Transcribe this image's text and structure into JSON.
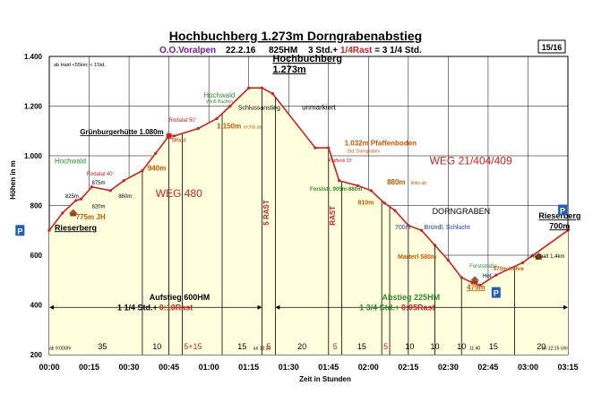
{
  "header": {
    "title": "Hochbuchberg 1.273m Dorngrabenabstieg",
    "org": "O.O.Voralpen",
    "date": "22.2.16",
    "elevation_gain": "825HM",
    "time_main": "3 Std.+ ",
    "time_rest": "1/4Rast",
    "time_total": " = 3 1/4 Std.",
    "page": "15/16",
    "note": "ab Haid <55km; < 1Std."
  },
  "colors": {
    "profile": "#cc2222",
    "fill": "#ffffdd",
    "green": "#2e8b2e",
    "orange": "#cc5500",
    "blue": "#1a3aa8",
    "purple": "#7a1a9a",
    "grid": "#000000"
  },
  "chart_data": {
    "type": "area",
    "ylabel": "Höhen in m",
    "xlabel": "Zeit in Stunden",
    "ylim": [
      200,
      1400
    ],
    "xlim_minutes": [
      0,
      195
    ],
    "yticks": [
      "200",
      "400",
      "600",
      "800",
      "1.000",
      "1.200",
      "1.400"
    ],
    "ytick_values": [
      200,
      400,
      600,
      800,
      1000,
      1200,
      1400
    ],
    "xticks": [
      "00:00",
      "00:15",
      "00:30",
      "00:45",
      "01:00",
      "01:15",
      "01:30",
      "01:45",
      "02:00",
      "02:15",
      "02:30",
      "02:45",
      "03:00",
      "03:15"
    ],
    "xtick_minutes": [
      0,
      15,
      30,
      45,
      60,
      75,
      90,
      105,
      120,
      135,
      150,
      165,
      180,
      195
    ],
    "profile": {
      "minutes": [
        0,
        5,
        10,
        12,
        16,
        23,
        28,
        35,
        40,
        45,
        47,
        56,
        63,
        68,
        75,
        80,
        84,
        100,
        105,
        109,
        116,
        121,
        126,
        130,
        135,
        140,
        145,
        150,
        155,
        159,
        162,
        168,
        178,
        195
      ],
      "elevations": [
        700,
        770,
        820,
        826,
        875,
        860,
        900,
        940,
        1010,
        1080,
        1080,
        1110,
        1150,
        1200,
        1273,
        1273,
        1250,
        1032,
        1032,
        900,
        880,
        860,
        810,
        780,
        720,
        700,
        640,
        580,
        510,
        490,
        479,
        520,
        570,
        700
      ]
    },
    "vlines_minutes": [
      35,
      45,
      50,
      65,
      80,
      85,
      105,
      110,
      125,
      128,
      135,
      145,
      155,
      175
    ],
    "segment_labels": [
      {
        "text": "35",
        "minute": 20
      },
      {
        "text": "10",
        "minute": 40.5
      },
      {
        "text": "5+15",
        "minute": 54
      },
      {
        "text": "15",
        "minute": 72.5
      },
      {
        "text": "5",
        "minute": 82.5
      },
      {
        "text": "20",
        "minute": 95
      },
      {
        "text": "5",
        "minute": 107.5
      },
      {
        "text": "15",
        "minute": 117.5
      },
      {
        "text": "5",
        "minute": 126.5
      },
      {
        "text": "10",
        "minute": 135.5
      },
      {
        "text": "10",
        "minute": 145
      },
      {
        "text": "10",
        "minute": 155
      },
      {
        "text": "15",
        "minute": 167
      },
      {
        "text": "20",
        "minute": 185
      }
    ],
    "annotations": [
      {
        "text": "Hochbuchberg",
        "minute": 84,
        "elev": 1378,
        "color": "#000000",
        "size": 11,
        "bold": true,
        "underline": true
      },
      {
        "text": "1.273m",
        "minute": 84,
        "elev": 1336,
        "color": "#000000",
        "size": 11,
        "bold": true,
        "underline": true
      },
      {
        "text": "Grünburgerhütte 1.080m",
        "minute": 43,
        "elev": 1086,
        "color": "#000000",
        "size": 8,
        "bold": true,
        "underline": true,
        "anchor": "end"
      },
      {
        "text": "Hochwald",
        "minute": 2,
        "elev": 970,
        "color": "#2e8b2e",
        "size": 8
      },
      {
        "text": "Hochwald",
        "minute": 58,
        "elev": 1235,
        "color": "#2e8b2e",
        "size": 8
      },
      {
        "text": "Weiß Buchen",
        "minute": 59,
        "elev": 1212,
        "color": "#2e8b2e",
        "size": 5
      },
      {
        "text": "Rodatal 50'",
        "minute": 45,
        "elev": 1137,
        "color": "#cc2222",
        "size": 6
      },
      {
        "text": "5Rast",
        "minute": 46,
        "elev": 1055,
        "color": "#cc2222",
        "size": 6
      },
      {
        "text": "Rodatal 40'",
        "minute": 14,
        "elev": 920,
        "color": "#cc2222",
        "size": 6
      },
      {
        "text": "940m",
        "minute": 37,
        "elev": 940,
        "color": "#cc5500",
        "size": 8,
        "bold": true
      },
      {
        "text": "825m",
        "minute": 6,
        "elev": 830,
        "color": "#000000",
        "size": 6
      },
      {
        "text": "875m",
        "minute": 16,
        "elev": 884,
        "color": "#000000",
        "size": 6
      },
      {
        "text": "820m",
        "minute": 16,
        "elev": 790,
        "color": "#000000",
        "size": 6
      },
      {
        "text": "860m",
        "minute": 26,
        "elev": 830,
        "color": "#000000",
        "size": 6
      },
      {
        "text": "775m JH",
        "minute": 10,
        "elev": 745,
        "color": "#cc5500",
        "size": 8,
        "bold": true
      },
      {
        "text": "WEG 480",
        "minute": 40,
        "elev": 835,
        "color": "#cc2222",
        "size": 12
      },
      {
        "text": "1.150m",
        "minute": 63,
        "elev": 1110,
        "color": "#cc5500",
        "size": 8,
        "bold": true
      },
      {
        "text": "rechts ab",
        "minute": 73,
        "elev": 1110,
        "color": "#cc5500",
        "size": 5
      },
      {
        "text": "Schlussanstieg",
        "minute": 71,
        "elev": 1185,
        "color": "#000000",
        "size": 7
      },
      {
        "text": "unmarkiert",
        "minute": 95,
        "elev": 1185,
        "color": "#000000",
        "size": 8
      },
      {
        "text": "5 RAST",
        "minute": 82.5,
        "elev": 720,
        "color": "#cc2222",
        "size": 8,
        "bold": true,
        "rotate": true
      },
      {
        "text": "RAST",
        "minute": 107.5,
        "elev": 720,
        "color": "#cc2222",
        "size": 8,
        "bold": true,
        "rotate": true
      },
      {
        "text": "1.032m Pfaffenboden",
        "minute": 111,
        "elev": 1042,
        "color": "#cc5500",
        "size": 8,
        "bold": true
      },
      {
        "text": "Std. Dorngraben",
        "minute": 112,
        "elev": 1013,
        "color": "#cc5500",
        "size": 5
      },
      {
        "text": "WEG 21/404/409",
        "minute": 143,
        "elev": 965,
        "color": "#cc2222",
        "size": 12
      },
      {
        "text": "Pfaffenb 20'",
        "minute": 105,
        "elev": 975,
        "color": "#cc2222",
        "size": 5
      },
      {
        "text": "880m",
        "minute": 127,
        "elev": 885,
        "color": "#cc5500",
        "size": 8,
        "bold": true
      },
      {
        "text": "links ab",
        "minute": 136,
        "elev": 885,
        "color": "#cc5500",
        "size": 5
      },
      {
        "text": "Forststr. 905m-880m",
        "minute": 98,
        "elev": 860,
        "color": "#2e8b2e",
        "size": 6,
        "bold": true
      },
      {
        "text": "810m",
        "minute": 116,
        "elev": 804,
        "color": "#cc5500",
        "size": 7,
        "bold": true
      },
      {
        "text": "DORNGRABEN",
        "minute": 144,
        "elev": 765,
        "color": "#000000",
        "size": 9
      },
      {
        "text": "700m",
        "minute": 130,
        "elev": 705,
        "color": "#1a3aa8",
        "size": 7
      },
      {
        "text": "Bründl, Schlucht",
        "minute": 141,
        "elev": 705,
        "color": "#1a3aa8",
        "size": 7
      },
      {
        "text": "Marterl 580m",
        "minute": 131,
        "elev": 585,
        "color": "#cc5500",
        "size": 7,
        "bold": true
      },
      {
        "text": "Forststraße",
        "minute": 158,
        "elev": 550,
        "color": "#2e8b2e",
        "size": 6
      },
      {
        "text": "Hof",
        "minute": 163,
        "elev": 510,
        "color": "#000000",
        "size": 6
      },
      {
        "text": "479m",
        "minute": 157,
        "elev": 462,
        "color": "#cc5500",
        "size": 8,
        "bold": true,
        "underline": true
      },
      {
        "text": "570m Kehre",
        "minute": 167,
        "elev": 538,
        "color": "#cc5500",
        "size": 6,
        "bold": true
      },
      {
        "text": "Asphalt 1,4km",
        "minute": 181,
        "elev": 590,
        "color": "#000000",
        "size": 6
      },
      {
        "text": "Rieserberg",
        "minute": 2,
        "elev": 700,
        "color": "#000000",
        "size": 9,
        "bold": true,
        "underline": true
      },
      {
        "text": "Rieserberg",
        "minute": 184,
        "elev": 747,
        "color": "#000000",
        "size": 9,
        "bold": true,
        "underline": true
      },
      {
        "text": "700m",
        "minute": 188,
        "elev": 707,
        "color": "#000000",
        "size": 9,
        "bold": true,
        "underline": true
      },
      {
        "text": "Aufstieg 600HM",
        "minute": 49,
        "elev": 420,
        "color": "#000000",
        "size": 9,
        "bold": true,
        "anchor": "middle"
      },
      {
        "text": "1 1/4 Std.+",
        "minute": 41,
        "elev": 378,
        "color": "#000000",
        "size": 9,
        "bold": true,
        "anchor": "end",
        "gap": 1
      },
      {
        "text": "0:10Rast",
        "minute": 41,
        "elev": 378,
        "color": "#cc2222",
        "size": 9,
        "bold": true,
        "gap": 1
      },
      {
        "text": "Abstieg 225HM",
        "minute": 136,
        "elev": 420,
        "color": "#2e8b2e",
        "size": 9,
        "bold": true,
        "anchor": "middle"
      },
      {
        "text": "1 3/4 Std.+",
        "minute": 132,
        "elev": 378,
        "color": "#2e8b2e",
        "size": 9,
        "bold": true,
        "anchor": "end",
        "gap": 1
      },
      {
        "text": "0:05Rast",
        "minute": 132,
        "elev": 378,
        "color": "#cc2222",
        "size": 9,
        "bold": true,
        "gap": 1
      },
      {
        "text": "ab 9:00Uhr",
        "minute": 0,
        "elev": 219,
        "color": "#000000",
        "size": 5
      },
      {
        "text": "an 10:20",
        "minute": 80,
        "elev": 219,
        "color": "#000000",
        "size": 5,
        "anchor": "middle"
      },
      {
        "text": "11:40",
        "minute": 160,
        "elev": 219,
        "color": "#000000",
        "size": 5,
        "anchor": "middle"
      },
      {
        "text": "an 12:15 Uhr",
        "minute": 195,
        "elev": 219,
        "color": "#000000",
        "size": 5,
        "anchor": "end"
      }
    ],
    "markers": [
      {
        "minute": 9,
        "elev": 775,
        "kind": "house"
      },
      {
        "minute": 45,
        "elev": 1080,
        "kind": "hut"
      },
      {
        "minute": 160,
        "elev": 505,
        "kind": "house"
      },
      {
        "minute": 184,
        "elev": 600,
        "kind": "house"
      }
    ],
    "parking": [
      {
        "label": "P",
        "minute": -11,
        "elev": 700
      },
      {
        "label": "P",
        "minute": 168,
        "elev": 450
      },
      {
        "label": "P",
        "minute": 193,
        "elev": 782
      }
    ]
  }
}
